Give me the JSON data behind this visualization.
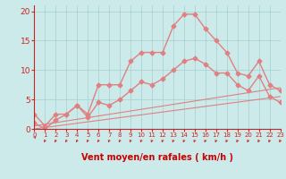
{
  "title": "",
  "xlabel": "Vent moyen/en rafales ( km/h )",
  "ylabel": "",
  "bg_color": "#cceaea",
  "grid_color": "#aad4d4",
  "line_color": "#e08080",
  "xlim": [
    0,
    23
  ],
  "ylim": [
    0,
    21
  ],
  "yticks": [
    0,
    5,
    10,
    15,
    20
  ],
  "xticks": [
    0,
    1,
    2,
    3,
    4,
    5,
    6,
    7,
    8,
    9,
    10,
    11,
    12,
    13,
    14,
    15,
    16,
    17,
    18,
    19,
    20,
    21,
    22,
    23
  ],
  "series": [
    {
      "x": [
        0,
        1,
        2,
        3,
        4,
        5,
        6,
        7,
        8,
        9,
        10,
        11,
        12,
        13,
        14,
        15,
        16,
        17,
        18,
        19,
        20,
        21,
        22,
        23
      ],
      "y": [
        2.5,
        0.5,
        2.5,
        2.5,
        4.0,
        2.5,
        7.5,
        7.5,
        7.5,
        11.5,
        13.0,
        13.0,
        13.0,
        17.5,
        19.5,
        19.5,
        17.0,
        15.0,
        13.0,
        9.5,
        9.0,
        11.5,
        7.5,
        6.5
      ],
      "marker": "D",
      "markersize": 2.5,
      "linewidth": 1.0
    },
    {
      "x": [
        0,
        1,
        2,
        3,
        4,
        5,
        6,
        7,
        8,
        9,
        10,
        11,
        12,
        13,
        14,
        15,
        16,
        17,
        18,
        19,
        20,
        21,
        22,
        23
      ],
      "y": [
        1.0,
        0.0,
        1.5,
        2.5,
        4.0,
        2.0,
        4.5,
        4.0,
        5.0,
        6.5,
        8.0,
        7.5,
        8.5,
        10.0,
        11.5,
        12.0,
        11.0,
        9.5,
        9.5,
        7.5,
        6.5,
        9.0,
        5.5,
        4.5
      ],
      "marker": "D",
      "markersize": 2.5,
      "linewidth": 1.0
    },
    {
      "x": [
        0,
        23
      ],
      "y": [
        0.5,
        7.0
      ],
      "marker": null,
      "markersize": 0,
      "linewidth": 0.8
    },
    {
      "x": [
        0,
        23
      ],
      "y": [
        0.0,
        5.5
      ],
      "marker": null,
      "markersize": 0,
      "linewidth": 0.8
    }
  ],
  "arrow_color": "#cc2222",
  "xlabel_color": "#cc0000",
  "tick_color": "#cc2222",
  "axis_color": "#cc2222",
  "xlabel_fontsize": 7.0,
  "ytick_fontsize": 6.5,
  "xtick_fontsize": 5.0
}
